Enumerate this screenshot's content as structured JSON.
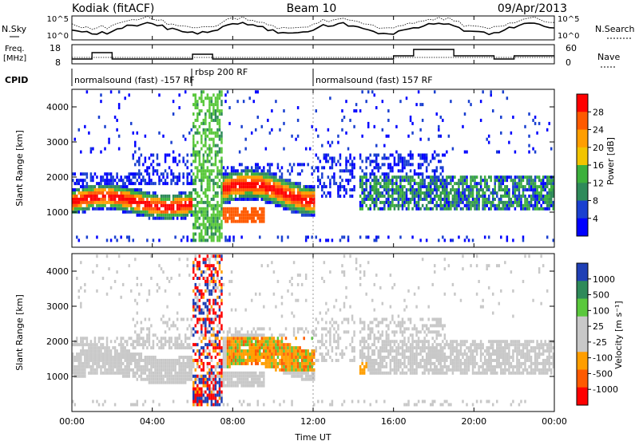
{
  "header": {
    "station": "Kodiak (fitACF)",
    "beam": "Beam 10",
    "date": "09/Apr/2013"
  },
  "top_panels": {
    "nsky_label": "N.Sky",
    "nsearch_label": "N.Search",
    "noise_ticks": [
      "10^5",
      "10^0"
    ],
    "freq_label_1": "Freq.",
    "freq_label_2": "[MHz]",
    "freq_ticks": [
      "18",
      "8"
    ],
    "nave_label": "Nave",
    "nave_ticks": [
      "60",
      "0"
    ],
    "cpid_label": "CPID",
    "cpid_segments": [
      "normalsound (fast) -157 RF",
      "rbsp 200 RF",
      "normalsound (fast) 157 RF"
    ]
  },
  "chart_data": [
    {
      "type": "heatmap",
      "name": "power",
      "ylabel": "Slant Range [km]",
      "y_ticks": [
        "1000",
        "2000",
        "3000",
        "4000"
      ],
      "ylim": [
        0,
        4500
      ],
      "x_ticks": [
        "00:00",
        "04:00",
        "08:00",
        "12:00",
        "16:00",
        "20:00",
        "00:00"
      ],
      "xlim_hours": [
        0,
        24
      ],
      "colorbar_label": "Power [dB]",
      "colorbar_ticks": [
        "28",
        "24",
        "20",
        "16",
        "12",
        "8",
        "4"
      ],
      "colorbar_colors": [
        "#ff0000",
        "#ff5a00",
        "#ff9e00",
        "#f2c400",
        "#3cb03c",
        "#2e8a5a",
        "#1a40d0",
        "#0000ff"
      ],
      "events": [
        {
          "name": "rbsp interval",
          "x_start_hours": 5.9,
          "x_end_hours": 7.4
        },
        {
          "name": "mode change",
          "x_hours": 12.0
        }
      ]
    },
    {
      "type": "heatmap",
      "name": "velocity",
      "ylabel": "Slant Range [km]",
      "y_ticks": [
        "1000",
        "2000",
        "3000",
        "4000"
      ],
      "ylim": [
        0,
        4500
      ],
      "x_ticks": [
        "00:00",
        "04:00",
        "08:00",
        "12:00",
        "16:00",
        "20:00",
        "00:00"
      ],
      "xlim_hours": [
        0,
        24
      ],
      "xlabel": "Time UT",
      "colorbar_label": "Velocity [m s⁻¹]",
      "colorbar_ticks": [
        "1000",
        "500",
        "100",
        "25",
        "-25",
        "-100",
        "-500",
        "-1000"
      ],
      "colorbar_colors": [
        "#1f3fb5",
        "#2e8a5a",
        "#5ac83c",
        "#c8c8c8",
        "#c8c8c8",
        "#ff9e00",
        "#ff5a00",
        "#ff0000"
      ]
    }
  ]
}
